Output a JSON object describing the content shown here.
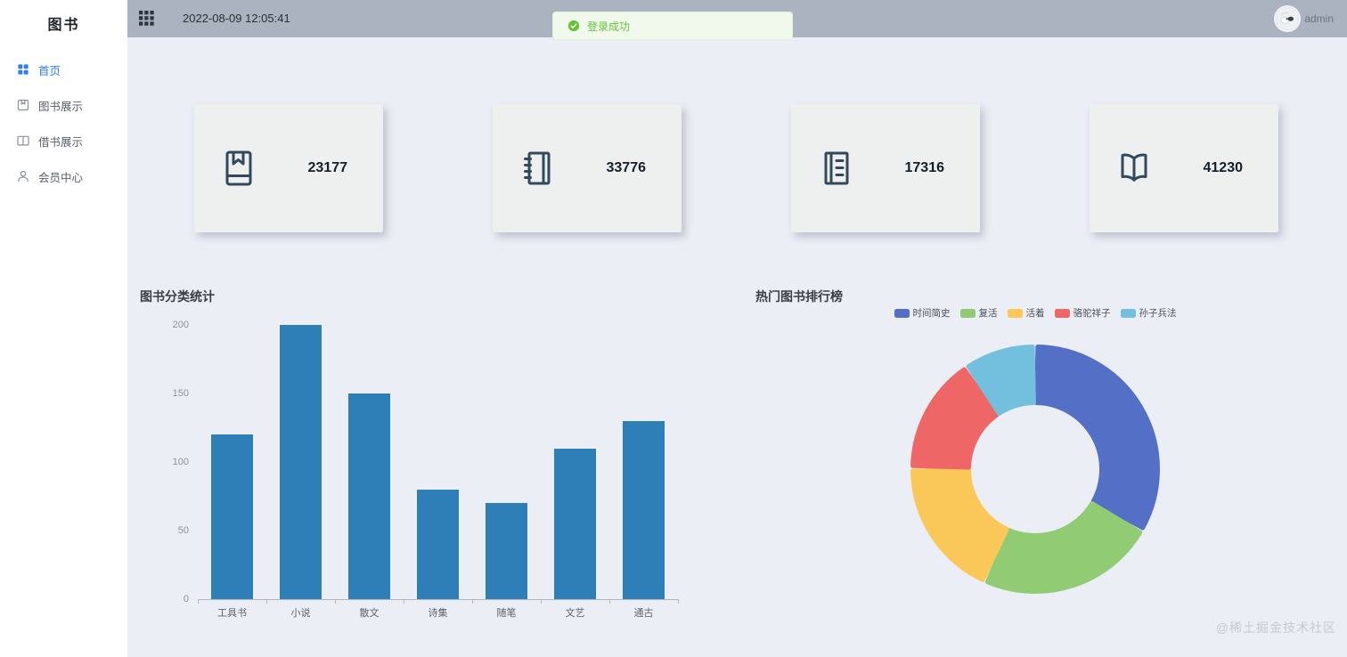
{
  "sidebar": {
    "logo": "图书",
    "items": [
      {
        "label": "首页",
        "icon": "home-grid-icon",
        "active": true
      },
      {
        "label": "图书展示",
        "icon": "book-icon",
        "active": false
      },
      {
        "label": "借书展示",
        "icon": "open-book-icon",
        "active": false
      },
      {
        "label": "会员中心",
        "icon": "user-icon",
        "active": false
      }
    ],
    "active_color": "#2d7df6"
  },
  "header": {
    "menu_icon": "apps-grid-icon",
    "timestamp": "2022-08-09 12:05:41",
    "user": "admin",
    "background": "#aab3bf"
  },
  "toast": {
    "icon": "check-circle-icon",
    "text": "登录成功",
    "text_color": "#67c23a",
    "background": "#f0f9eb"
  },
  "stat_cards": [
    {
      "icon": "book-bookmark-icon",
      "value": "23177"
    },
    {
      "icon": "notebook-icon",
      "value": "33776"
    },
    {
      "icon": "ledger-icon",
      "value": "17316"
    },
    {
      "icon": "open-book-large-icon",
      "value": "41230"
    }
  ],
  "watermark": "@稀土掘金技术社区",
  "chart_data": [
    {
      "type": "bar",
      "title": "图书分类统计",
      "categories": [
        "工具书",
        "小说",
        "散文",
        "诗集",
        "随笔",
        "文艺",
        "通古"
      ],
      "values": [
        120,
        200,
        150,
        80,
        70,
        110,
        130
      ],
      "xlabel": "",
      "ylabel": "",
      "ylim": [
        0,
        200
      ],
      "yticks": [
        0,
        50,
        100,
        150,
        200
      ],
      "bar_color": "#2e7fb8",
      "grid": false,
      "legend_position": "none"
    },
    {
      "type": "pie",
      "title": "热门图书排行榜",
      "donut": true,
      "legend_position": "top",
      "units": "percent (estimated from arc angles)",
      "series": [
        {
          "name": "时间简史",
          "value": 33.3,
          "color": "#5470c6"
        },
        {
          "name": "复活",
          "value": 23.4,
          "color": "#91cc75"
        },
        {
          "name": "活着",
          "value": 18.4,
          "color": "#fac858"
        },
        {
          "name": "骆驼祥子",
          "value": 15.4,
          "color": "#ee6666"
        },
        {
          "name": "孙子兵法",
          "value": 9.5,
          "color": "#73c0de"
        }
      ]
    }
  ]
}
